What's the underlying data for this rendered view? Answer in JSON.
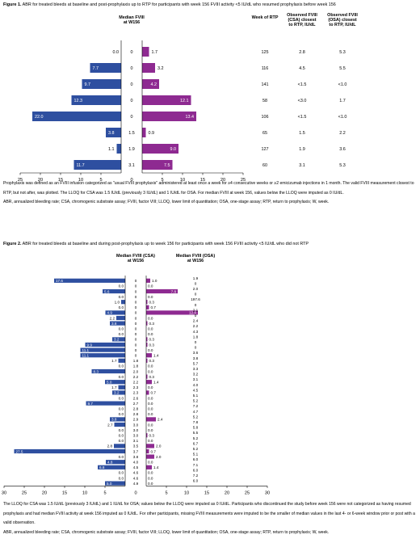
{
  "colors": {
    "baseline": "#2e4fa0",
    "rtp": "#8e2a91",
    "axis": "#000000"
  },
  "figure1": {
    "label": "Figure 1.",
    "title": " ABR for treated bleeds at baseline and post-prophylaxis up to RTP for participants with week 156 FVIII activity <5 IU/dL who resumed prophylaxis before week 156",
    "notes": [
      "Prophylaxis was defined as an FVIII infusion categorized as \"usual FVIII prophylaxis\" administered at least once a week for ≥4 consecutive weeks or ≥2 emicizumab injections in 1 month. The valid FVIII measurement closest to RTP, but not after, was plotted. The LLOQ for CSA was 1.5 IU/dL (previously 3 IU/dL) and 1 IU/dL for OSA. For median FVIII at week 156, values below the LLOQ were imputed as 0 IU/dL.",
      "ABR, annualized bleeding rate; CSA, chromogenic substrate assay; FVIII, factor VIII; LLOQ, lower limit of quantitation; OSA, one-stage assay; RTP, return to prophylaxis; W, week."
    ],
    "chart_data": {
      "type": "bar",
      "orientation": "horizontal-butterfly",
      "xlabel": "ABR (treated), bleeds/yr",
      "xticks": [
        "25",
        "20",
        "15",
        "10",
        "5",
        "0",
        "5",
        "10",
        "15",
        "20",
        "25"
      ],
      "xlim": [
        0,
        25
      ],
      "col_headers": {
        "median": "Median FVIII\nat W156",
        "week": "Week of RTP",
        "csa": "Observed FVIII\n(CSA) closest\nto RTP, IU/dL",
        "osa": "Observed FVIII\n(OSA) closest\nto RTP, IU/dL"
      },
      "legend": {
        "baseline": "Baseline ABR (no./yr)",
        "rtp": "ABR up to RTP (no./yr)"
      },
      "rows": [
        {
          "baseline": 0.0,
          "baseline_label": "0.0",
          "median": "0",
          "rtp": 1.7,
          "rtp_label": "1.7",
          "week": "125",
          "csa": "2.8",
          "osa": "5.3"
        },
        {
          "baseline": 7.7,
          "baseline_label": "7.7",
          "median": "0",
          "rtp": 3.2,
          "rtp_label": "3.2",
          "week": "116",
          "csa": "4.5",
          "osa": "5.5"
        },
        {
          "baseline": 9.7,
          "baseline_label": "9.7",
          "median": "0",
          "rtp": 4.2,
          "rtp_label": "4.2",
          "week": "141",
          "csa": "<1.5",
          "osa": "<1.0"
        },
        {
          "baseline": 12.3,
          "baseline_label": "12.3",
          "median": "0",
          "rtp": 12.1,
          "rtp_label": "12.1",
          "week": "58",
          "csa": "<3.0",
          "osa": "1.7"
        },
        {
          "baseline": 22.0,
          "baseline_label": "22.0",
          "median": "0",
          "rtp": 13.4,
          "rtp_label": "13.4",
          "week": "106",
          "csa": "<1.5",
          "osa": "<1.0"
        },
        {
          "baseline": 3.8,
          "baseline_label": "3.8",
          "median": "1.5",
          "rtp": 0.9,
          "rtp_label": "0.9",
          "week": "65",
          "csa": "1.5",
          "osa": "2.2"
        },
        {
          "baseline": 1.1,
          "baseline_label": "1.1",
          "median": "1.9",
          "rtp": 9.0,
          "rtp_label": "9.0",
          "week": "127",
          "csa": "1.9",
          "osa": "3.6"
        },
        {
          "baseline": 11.7,
          "baseline_label": "11.7",
          "median": "3.1",
          "rtp": 7.5,
          "rtp_label": "7.5",
          "week": "60",
          "csa": "3.1",
          "osa": "5.3"
        }
      ]
    }
  },
  "figure2": {
    "label": "Figure 2.",
    "title": " ABR for treated bleeds at baseline and during post-prophylaxis up to week 156 for participants with week 156 FVIII activity <5 IU/dL who did not RTP",
    "notes": [
      "The LLOQ for CSA was 1.5 IU/dL (previously 3 IU/dL) and 1 IU/dL for OSA; values below the LLOQ were imputed as 0 IU/dL. Participants who discontinued the study before week 156 were not categorized as having resumed prophylaxis and had median FVIII activity at week 156 imputed as 0 IU/dL. For other participants, missing FVIII measurements were imputed to be the smaller of median values in the last 4- or 6-week window prior or post with a valid observation.",
      "ABR, annualized bleeding rate; CSA, chromogenic substrate assay; FVIII, factor VIII; LLOQ, lower limit of quantitation; OSA, one-stage assay; RTP, return to prophylaxis; W, week."
    ],
    "chart_data": {
      "type": "bar",
      "orientation": "horizontal-butterfly",
      "xlabel": "ABR (treated), bleeds/yr",
      "xticks": [
        "30",
        "25",
        "20",
        "15",
        "10",
        "5",
        "0",
        "5",
        "10",
        "15",
        "20",
        "25",
        "30"
      ],
      "xlim": [
        0,
        30
      ],
      "col_headers": {
        "csa": "Median FVIII (CSA)\nat W156",
        "osa": "Median FVIII (OSA)\nat W156"
      },
      "legend": {
        "baseline": "Baseline ABR (no./yr)",
        "rtp": "ABR up to W156 (no./yr)"
      },
      "rows": [
        {
          "baseline": 17.6,
          "baseline_label": "17.6",
          "csa": "0",
          "rtp": 1.0,
          "rtp_label": "1.0",
          "osa": "1.9"
        },
        {
          "baseline": 0.0,
          "baseline_label": "0.0",
          "csa": "0",
          "rtp": 0.0,
          "rtp_label": "0.0",
          "osa": "0"
        },
        {
          "baseline": 5.6,
          "baseline_label": "5.6",
          "csa": "0",
          "rtp": 7.8,
          "rtp_label": "7.8",
          "osa": "2.0"
        },
        {
          "baseline": 0.0,
          "baseline_label": "0.0",
          "csa": "0",
          "rtp": 0.0,
          "rtp_label": "0.0",
          "osa": "0"
        },
        {
          "baseline": 1.0,
          "baseline_label": "1.0",
          "csa": "0",
          "rtp": 0.3,
          "rtp_label": "0.3",
          "osa": "197.6"
        },
        {
          "baseline": 0.0,
          "baseline_label": "0.0",
          "csa": "0",
          "rtp": 0.7,
          "rtp_label": "0.7",
          "osa": "0"
        },
        {
          "baseline": 4.9,
          "baseline_label": "4.9",
          "csa": "0",
          "rtp": 12.8,
          "rtp_label": "12.8",
          "osa": "2.1"
        },
        {
          "baseline": 2.2,
          "baseline_label": "2.2",
          "csa": "0",
          "rtp": 0.0,
          "rtp_label": "0.0",
          "osa": "0"
        },
        {
          "baseline": 3.8,
          "baseline_label": "3.8",
          "csa": "0",
          "rtp": 0.3,
          "rtp_label": "0.3",
          "osa": "2.4"
        },
        {
          "baseline": 0.0,
          "baseline_label": "0.0",
          "csa": "0",
          "rtp": 0.0,
          "rtp_label": "0.0",
          "osa": "2.2"
        },
        {
          "baseline": 0.0,
          "baseline_label": "0.0",
          "csa": "0",
          "rtp": 0.0,
          "rtp_label": "0.0",
          "osa": "4.3"
        },
        {
          "baseline": 3.2,
          "baseline_label": "3.2",
          "csa": "0",
          "rtp": 0.3,
          "rtp_label": "0.3",
          "osa": "1.8"
        },
        {
          "baseline": 9.9,
          "baseline_label": "9.9",
          "csa": "0",
          "rtp": 0.3,
          "rtp_label": "0.3",
          "osa": "0"
        },
        {
          "baseline": 11.1,
          "baseline_label": "11.1",
          "csa": "0",
          "rtp": 0.0,
          "rtp_label": "0.0",
          "osa": "0"
        },
        {
          "baseline": 11.1,
          "baseline_label": "11.1",
          "csa": "0",
          "rtp": 1.4,
          "rtp_label": "1.4",
          "osa": "3.6"
        },
        {
          "baseline": 1.7,
          "baseline_label": "1.7",
          "csa": "1.8",
          "rtp": 0.3,
          "rtp_label": "0.3",
          "osa": "3.8"
        },
        {
          "baseline": 0.0,
          "baseline_label": "0.0",
          "csa": "1.8",
          "rtp": 0.0,
          "rtp_label": "0.0",
          "osa": "5.7"
        },
        {
          "baseline": 8.3,
          "baseline_label": "8.3",
          "csa": "2.0",
          "rtp": 0.0,
          "rtp_label": "0.0",
          "osa": "3.3"
        },
        {
          "baseline": 0.0,
          "baseline_label": "0.0",
          "csa": "2.2",
          "rtp": 0.3,
          "rtp_label": "0.3",
          "osa": "3.2"
        },
        {
          "baseline": 5.0,
          "baseline_label": "5.0",
          "csa": "2.2",
          "rtp": 1.4,
          "rtp_label": "1.4",
          "osa": "3.1"
        },
        {
          "baseline": 1.7,
          "baseline_label": "1.7",
          "csa": "2.3",
          "rtp": 0.0,
          "rtp_label": "0.0",
          "osa": "4.0"
        },
        {
          "baseline": 3.2,
          "baseline_label": "3.2",
          "csa": "2.3",
          "rtp": 0.7,
          "rtp_label": "0.7",
          "osa": "4.5"
        },
        {
          "baseline": 0.0,
          "baseline_label": "0.0",
          "csa": "2.6",
          "rtp": 0.0,
          "rtp_label": "0.0",
          "osa": "5.1"
        },
        {
          "baseline": 9.7,
          "baseline_label": "9.7",
          "csa": "2.7",
          "rtp": 0.0,
          "rtp_label": "0.0",
          "osa": "5.2"
        },
        {
          "baseline": 0.0,
          "baseline_label": "0.0",
          "csa": "2.8",
          "rtp": 0.0,
          "rtp_label": "0.0",
          "osa": "7.2"
        },
        {
          "baseline": 0.0,
          "baseline_label": "0.0",
          "csa": "2.8",
          "rtp": 0.0,
          "rtp_label": "0.0",
          "osa": "4.7"
        },
        {
          "baseline": 3.8,
          "baseline_label": "3.8",
          "csa": "2.9",
          "rtp": 2.4,
          "rtp_label": "2.4",
          "osa": "5.2"
        },
        {
          "baseline": 2.7,
          "baseline_label": "2.7",
          "csa": "3.0",
          "rtp": 0.0,
          "rtp_label": "0.0",
          "osa": "7.8"
        },
        {
          "baseline": 0.0,
          "baseline_label": "0.0",
          "csa": "3.0",
          "rtp": 0.0,
          "rtp_label": "0.0",
          "osa": "5.8"
        },
        {
          "baseline": 0.0,
          "baseline_label": "0.0",
          "csa": "3.0",
          "rtp": 0.3,
          "rtp_label": "0.3",
          "osa": "5.5"
        },
        {
          "baseline": 0.0,
          "baseline_label": "0.0",
          "csa": "3.1",
          "rtp": 0.0,
          "rtp_label": "0.0",
          "osa": "5.2"
        },
        {
          "baseline": 2.8,
          "baseline_label": "2.8",
          "csa": "3.5",
          "rtp": 2.0,
          "rtp_label": "2.0",
          "osa": "6.7"
        },
        {
          "baseline": 27.5,
          "baseline_label": "27.5",
          "csa": "3.7",
          "rtp": 0.7,
          "rtp_label": "0.7",
          "osa": "5.2"
        },
        {
          "baseline": 0.0,
          "baseline_label": "0.0",
          "csa": "3.8",
          "rtp": 2.0,
          "rtp_label": "2.0",
          "osa": "5.1"
        },
        {
          "baseline": 4.8,
          "baseline_label": "4.8",
          "csa": "4.0",
          "rtp": 0.0,
          "rtp_label": "0.0",
          "osa": "6.0"
        },
        {
          "baseline": 6.8,
          "baseline_label": "6.8",
          "csa": "4.5",
          "rtp": 1.4,
          "rtp_label": "1.4",
          "osa": "7.1"
        },
        {
          "baseline": 0.0,
          "baseline_label": "0.0",
          "csa": "4.6",
          "rtp": 0.0,
          "rtp_label": "0.0",
          "osa": "6.0"
        },
        {
          "baseline": 0.0,
          "baseline_label": "0.0",
          "csa": "4.6",
          "rtp": 0.0,
          "rtp_label": "0.0",
          "osa": "7.2"
        },
        {
          "baseline": 5.0,
          "baseline_label": "5.0",
          "csa": "4.9",
          "rtp": 0.0,
          "rtp_label": "0.0",
          "osa": "6.0"
        }
      ]
    }
  }
}
